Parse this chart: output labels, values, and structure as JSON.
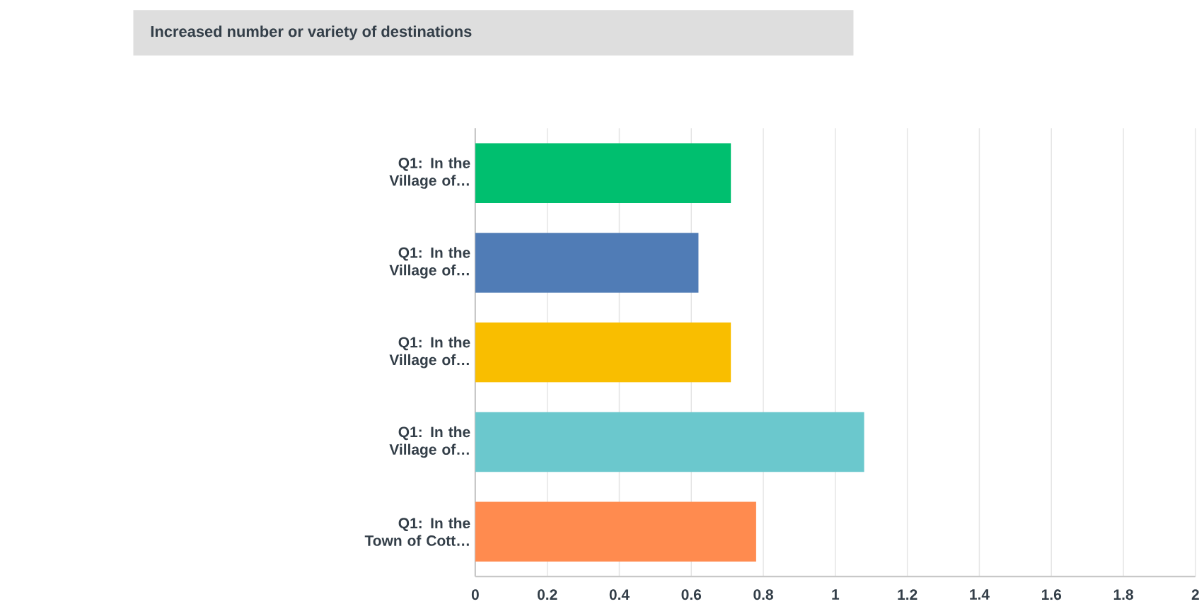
{
  "chart_data": {
    "type": "bar",
    "orientation": "horizontal",
    "title": "Increased number or variety of destinations",
    "categories": [
      "Q1: In the Village of…",
      "Q1: In the Village of…",
      "Q1: In the Village of…",
      "Q1: In the Village of…",
      "Q1: In the Town of Cott…"
    ],
    "values": [
      0.71,
      0.62,
      0.71,
      1.08,
      0.78
    ],
    "colors": [
      "#00bf6f",
      "#507cb6",
      "#f9be00",
      "#6bc8cd",
      "#ff8b4f"
    ],
    "xlim": [
      0,
      2
    ],
    "xticks": [
      0,
      0.2,
      0.4,
      0.6,
      0.8,
      1,
      1.2,
      1.4,
      1.6,
      1.8,
      2
    ],
    "grid": "x"
  }
}
